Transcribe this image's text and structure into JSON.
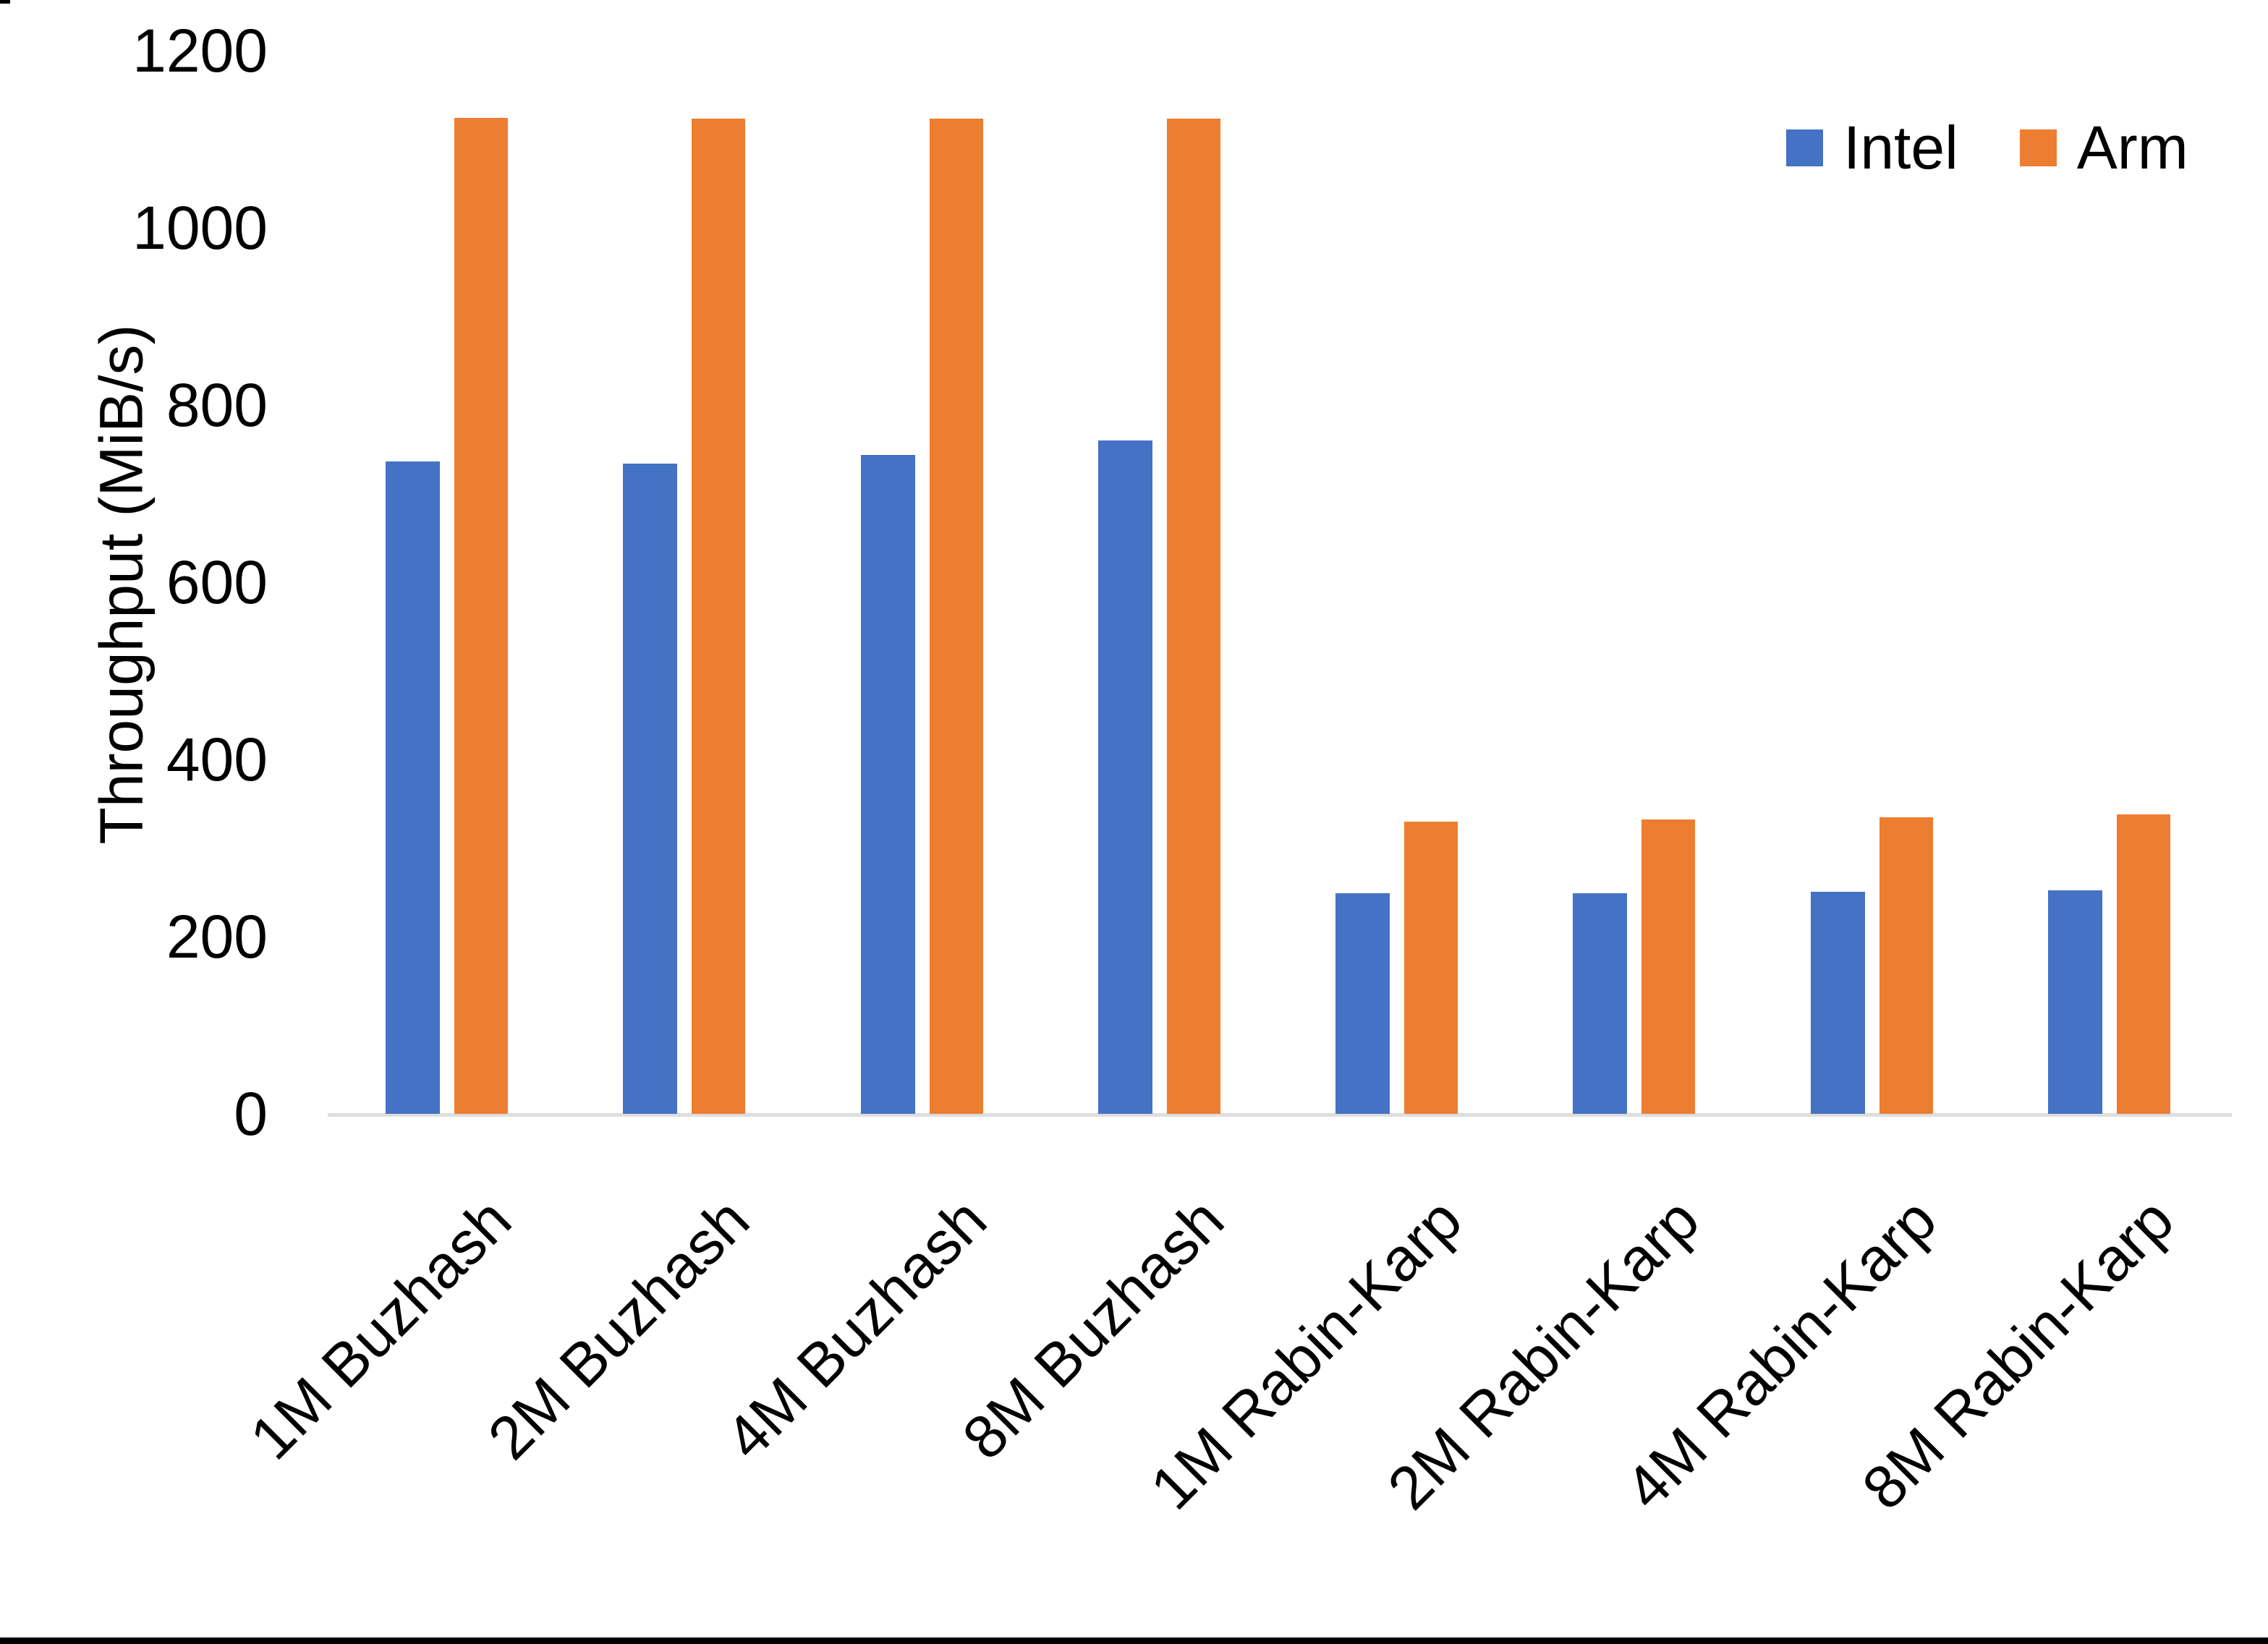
{
  "page": {
    "background": "#FFFFFF",
    "bottom_bar_color": "#000000"
  },
  "chart_data": {
    "type": "bar",
    "title": "",
    "ylabel": "Throughput (MiB/s)",
    "xlabel": "",
    "categories": [
      "1M Buzhash",
      "2M Buzhash",
      "4M Buzhash",
      "8M Buzhash",
      "1M Rabin-Karp",
      "2M Rabin-Karp",
      "4M Rabin-Karp",
      "8M Rabin-Karp"
    ],
    "series": [
      {
        "name": "Intel",
        "color": "#4472C4",
        "values": [
          736,
          734,
          744,
          760,
          249,
          249,
          251,
          252
        ]
      },
      {
        "name": "Arm",
        "color": "#ED7D31",
        "values": [
          1124,
          1123,
          1123,
          1123,
          330,
          332,
          335,
          338
        ]
      }
    ],
    "ylim": [
      0,
      1200
    ],
    "yticks": [
      0,
      200,
      400,
      600,
      800,
      1000,
      1200
    ],
    "grid": false,
    "legend_position": "top-right",
    "axis_line_color": "#DEDEDE",
    "text_color": "#000000"
  }
}
